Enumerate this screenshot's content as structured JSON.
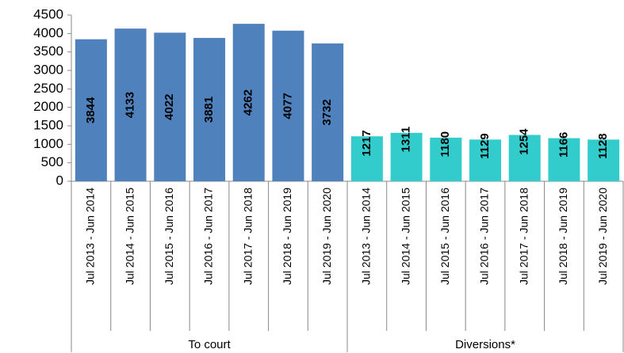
{
  "chart_data": {
    "type": "bar",
    "groups": [
      {
        "name": "To court",
        "color": "#4f81bd",
        "label_color": "#ffffff",
        "categories": [
          "Jul 2013 - Jun 2014",
          "Jul 2014 - Jun 2015",
          "Jul 2015 - Jun 2016",
          "Jul 2016 - Jun 2017",
          "Jul 2017 - Jun 2018",
          "Jul 2018 - Jun 2019",
          "Jul 2019 - Jun 2020"
        ],
        "values": [
          3844,
          4133,
          4022,
          3881,
          4262,
          4077,
          3732
        ]
      },
      {
        "name": "Diversions*",
        "color": "#33cccc",
        "label_color": "#000000",
        "categories": [
          "Jul 2013 - Jun 2014",
          "Jul 2014 - Jun 2015",
          "Jul 2015 - Jun 2016",
          "Jul 2016 - Jun 2017",
          "Jul 2017 - Jun 2018",
          "Jul 2018 - Jun 2019",
          "Jul 2019 - Jun 2020"
        ],
        "values": [
          1217,
          1311,
          1180,
          1129,
          1254,
          1166,
          1128
        ]
      }
    ],
    "ylim": [
      0,
      4500
    ],
    "yticks": [
      0,
      500,
      1000,
      1500,
      2000,
      2500,
      3000,
      3500,
      4000,
      4500
    ],
    "grid": false
  }
}
